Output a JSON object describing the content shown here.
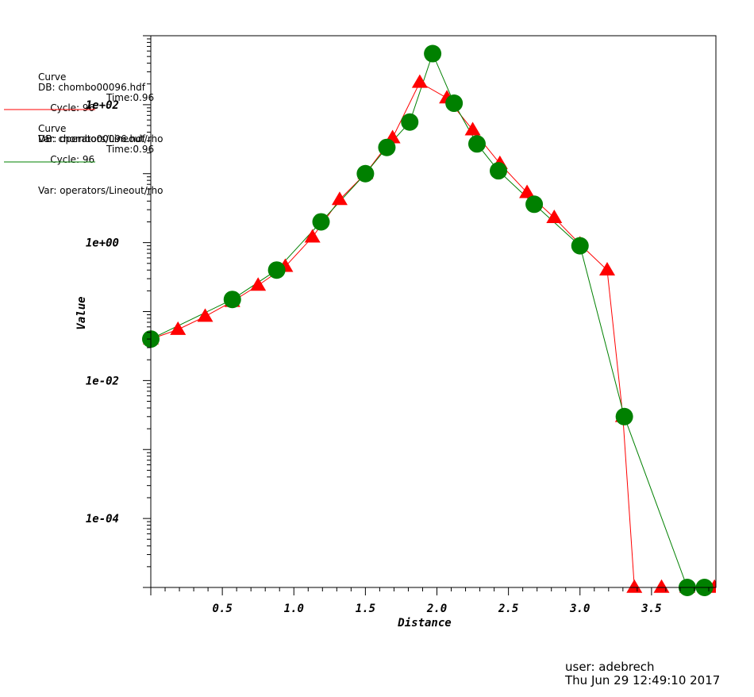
{
  "chart_data": {
    "type": "line",
    "xlabel": "Distance",
    "ylabel": "Value",
    "yscale": "log",
    "xlim": [
      0.0,
      3.95
    ],
    "ylim": [
      1e-05,
      1000.0
    ],
    "x_ticks": [
      "0.5",
      "1.0",
      "1.5",
      "2.0",
      "2.5",
      "3.0",
      "3.5"
    ],
    "y_ticks": [
      "1e+02",
      "1e+00",
      "1e-02",
      "1e-04"
    ],
    "grid": false,
    "series": [
      {
        "color": "#ff0000",
        "marker": "triangle",
        "legend": {
          "title": "Curve",
          "db": "DB: chombo00096.hdf",
          "cycle": "Cycle: 96",
          "time": "Time:0.96",
          "var": "Var: operators/Lineout/rho"
        },
        "x": [
          0.0,
          0.19,
          0.38,
          0.57,
          0.75,
          0.94,
          1.13,
          1.32,
          1.5,
          1.69,
          1.88,
          2.07,
          2.25,
          2.44,
          2.63,
          2.82,
          3.0,
          3.19,
          3.3,
          3.38,
          3.57,
          3.75,
          3.94
        ],
        "y": [
          0.04,
          0.055,
          0.085,
          0.14,
          0.24,
          0.45,
          1.2,
          4.2,
          10,
          33,
          210,
          125,
          43,
          14,
          5.3,
          2.3,
          0.95,
          0.4,
          0.003,
          1e-05,
          1e-05,
          1e-05,
          1e-05
        ]
      },
      {
        "color": "#008000",
        "marker": "circle",
        "legend": {
          "title": "Curve",
          "db": "DB: chombo00096.hdf",
          "cycle": "Cycle: 96",
          "time": "Time:0.96",
          "var": "Var: operators/Lineout/rho"
        },
        "x": [
          0.0,
          0.57,
          0.88,
          1.19,
          1.5,
          1.65,
          1.81,
          1.97,
          2.12,
          2.28,
          2.43,
          2.68,
          3.0,
          3.31,
          3.75,
          3.87
        ],
        "y": [
          0.04,
          0.15,
          0.4,
          2.0,
          10,
          24,
          56,
          550,
          105,
          27,
          11,
          3.6,
          0.9,
          0.003,
          1e-05,
          1e-05
        ]
      }
    ]
  },
  "footer": {
    "user": "user: adebrech",
    "timestamp": "Thu Jun 29 12:49:10 2017"
  }
}
